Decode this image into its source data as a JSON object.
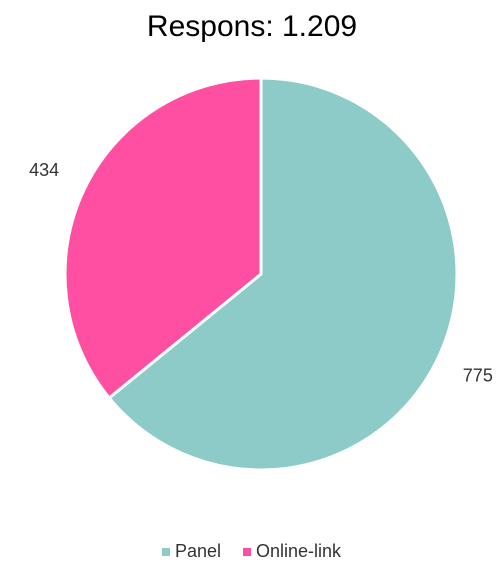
{
  "chart_data": {
    "type": "pie",
    "title": "Respons: 1.209",
    "categories": [
      "Panel",
      "Online-link"
    ],
    "values": [
      775,
      434
    ],
    "colors": [
      "#8ccbc8",
      "#ff4fa3"
    ],
    "legend": "bottom"
  }
}
